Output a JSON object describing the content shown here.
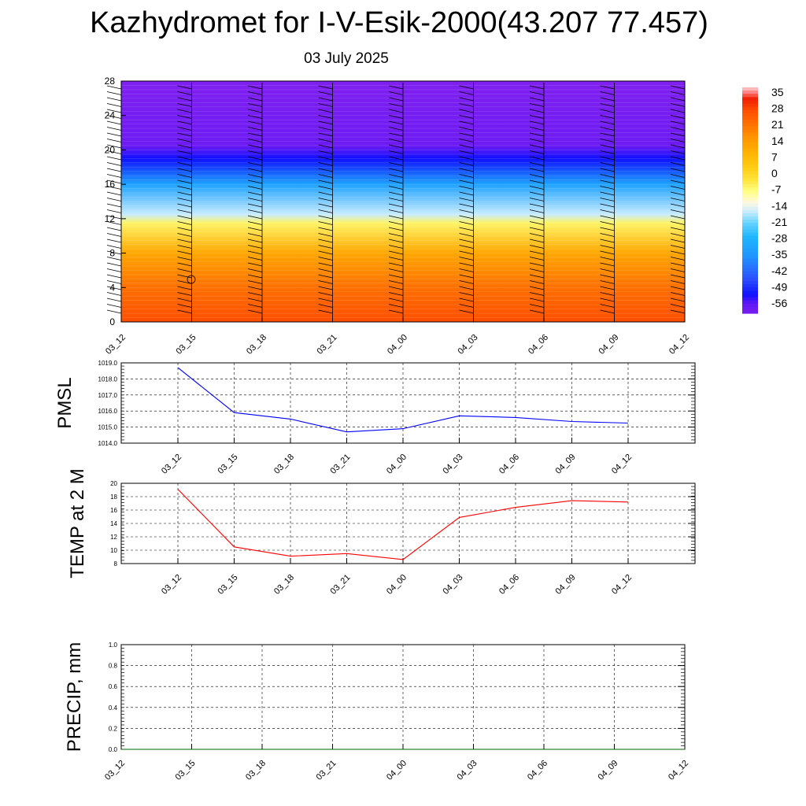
{
  "title": "Kazhydromet for I-V-Esik-2000(43.207 77.457)",
  "date": "03 July 2025",
  "colors": {
    "pressure_line": "#0000ff",
    "temp_line": "#ff0000",
    "precip_line": "#006400",
    "grid": "#000000"
  },
  "chart_data": [
    {
      "type": "heatmap",
      "x_ticks": [
        "03_12",
        "03_15",
        "03_18",
        "03_21",
        "04_00",
        "04_03",
        "04_06",
        "04_09",
        "04_12"
      ],
      "y_ticks": [
        "0",
        "4",
        "8",
        "12",
        "16",
        "20",
        "24",
        "28"
      ],
      "ylim": [
        0,
        28
      ],
      "colorbar_ticks": [
        "35",
        "28",
        "21",
        "14",
        "7",
        "0",
        "-7",
        "-14",
        "-21",
        "-28",
        "-35",
        "-42",
        "-49",
        "-56"
      ],
      "colorbar_range": [
        -60,
        38
      ],
      "approx_layers": [
        {
          "y": 0,
          "value": 28
        },
        {
          "y": 4,
          "value": 22
        },
        {
          "y": 8,
          "value": 12
        },
        {
          "y": 11.5,
          "value": -5
        },
        {
          "y": 12.5,
          "value": -16
        },
        {
          "y": 16,
          "value": -32
        },
        {
          "y": 19,
          "value": -52
        },
        {
          "y": 20.5,
          "value": -58
        },
        {
          "y": 28,
          "value": -62
        }
      ]
    },
    {
      "type": "line",
      "ylabel": "PMSL",
      "x": [
        "03_12",
        "03_15",
        "03_18",
        "03_21",
        "04_00",
        "04_03",
        "04_06",
        "04_09",
        "04_12"
      ],
      "y_ticks": [
        "1014.0",
        "1015.0",
        "1016.0",
        "1017.0",
        "1018.0",
        "1019.0"
      ],
      "ylim": [
        1014,
        1019
      ],
      "series": [
        {
          "values": [
            1018.7,
            1015.9,
            1015.5,
            1014.7,
            1014.9,
            1015.7,
            1015.6,
            1015.35,
            1015.25
          ]
        }
      ]
    },
    {
      "type": "line",
      "ylabel": "TEMP at 2 M",
      "x": [
        "03_12",
        "03_15",
        "03_18",
        "03_21",
        "04_00",
        "04_03",
        "04_06",
        "04_09",
        "04_12"
      ],
      "y_ticks": [
        "8",
        "10",
        "12",
        "14",
        "16",
        "18",
        "20"
      ],
      "ylim": [
        8,
        20
      ],
      "series": [
        {
          "values": [
            19.1,
            10.5,
            9.1,
            9.5,
            8.6,
            14.9,
            16.4,
            17.4,
            17.2
          ]
        }
      ]
    },
    {
      "type": "line",
      "ylabel": "PRECIP, mm",
      "x": [
        "03_12",
        "03_15",
        "03_18",
        "03_21",
        "04_00",
        "04_03",
        "04_06",
        "04_09",
        "04_12"
      ],
      "y_ticks": [
        "0.0",
        "0.2",
        "0.4",
        "0.6",
        "0.8",
        "1.0"
      ],
      "ylim": [
        0,
        1
      ],
      "series": [
        {
          "values": [
            0,
            0,
            0,
            0,
            0,
            0,
            0,
            0,
            0
          ]
        }
      ]
    }
  ]
}
